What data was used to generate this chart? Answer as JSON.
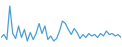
{
  "values": [
    22,
    28,
    18,
    85,
    30,
    20,
    45,
    22,
    38,
    15,
    32,
    18,
    30,
    50,
    30,
    45,
    18,
    25,
    15,
    20,
    35,
    55,
    50,
    38,
    28,
    40,
    32,
    20,
    28,
    22,
    30,
    25,
    28,
    22,
    30,
    25,
    35,
    28,
    30,
    25,
    28,
    22
  ],
  "line_color": "#4a9fd4",
  "background_color": "#ffffff",
  "ylim_min": 5,
  "ylim_max": 95,
  "linewidth": 0.9
}
